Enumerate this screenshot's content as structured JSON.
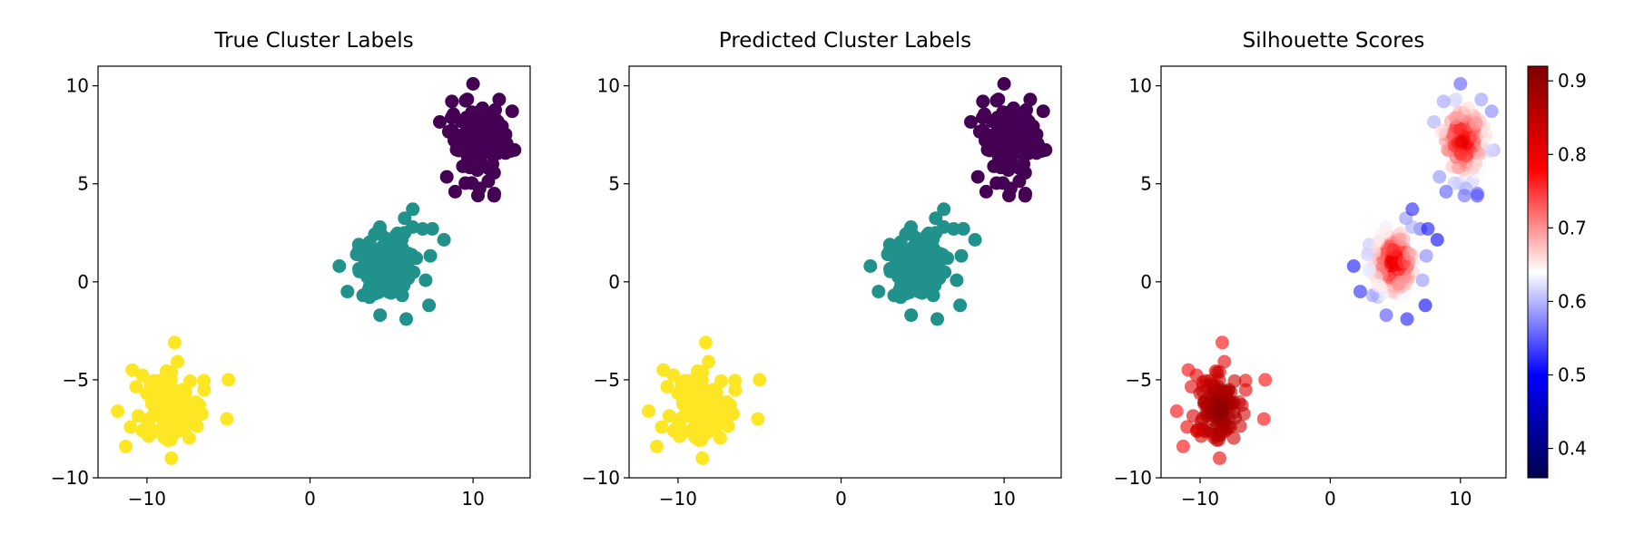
{
  "figure": {
    "background": "#ffffff"
  },
  "chart_data": [
    {
      "type": "scatter",
      "title": "True Cluster Labels",
      "xlabel": "",
      "ylabel": "",
      "xlim": [
        -13.0,
        13.5
      ],
      "ylim": [
        -10.0,
        11.0
      ],
      "xticks": [
        -10,
        0,
        10
      ],
      "xtick_labels": [
        "−10",
        "0",
        "10"
      ],
      "yticks": [
        -10,
        -5,
        0,
        5,
        10
      ],
      "ytick_labels": [
        "−10",
        "−5",
        "0",
        "5",
        "10"
      ],
      "grid": false,
      "series": [
        {
          "cluster": 0,
          "color": "#440154",
          "center": [
            10.2,
            7.2
          ],
          "count": 110,
          "points_sample": [
            [
              8.7,
              9.2
            ],
            [
              11.6,
              9.3
            ],
            [
              12.4,
              8.7
            ],
            [
              10.0,
              10.1
            ],
            [
              8.9,
              4.6
            ],
            [
              10.3,
              4.4
            ],
            [
              11.3,
              4.5
            ]
          ]
        },
        {
          "cluster": 1,
          "color": "#21918c",
          "center": [
            4.9,
            1.0
          ],
          "count": 110,
          "points_sample": [
            [
              1.8,
              0.8
            ],
            [
              6.3,
              3.7
            ],
            [
              7.3,
              -1.2
            ],
            [
              5.9,
              -1.9
            ],
            [
              4.3,
              -1.7
            ],
            [
              2.3,
              -0.5
            ],
            [
              7.5,
              2.7
            ]
          ]
        },
        {
          "cluster": 2,
          "color": "#fde725",
          "center": [
            -8.5,
            -6.5
          ],
          "count": 110,
          "points_sample": [
            [
              -11.3,
              -8.4
            ],
            [
              -11.8,
              -6.6
            ],
            [
              -8.3,
              -3.1
            ],
            [
              -5.0,
              -5.0
            ],
            [
              -5.1,
              -7.0
            ],
            [
              -10.9,
              -4.5
            ],
            [
              -8.5,
              -9.0
            ]
          ]
        }
      ]
    },
    {
      "type": "scatter",
      "title": "Predicted Cluster Labels",
      "xlabel": "",
      "ylabel": "",
      "xlim": [
        -13.0,
        13.5
      ],
      "ylim": [
        -10.0,
        11.0
      ],
      "xticks": [
        -10,
        0,
        10
      ],
      "xtick_labels": [
        "−10",
        "0",
        "10"
      ],
      "yticks": [
        -10,
        -5,
        0,
        5,
        10
      ],
      "ytick_labels": [
        "−10",
        "−5",
        "0",
        "5",
        "10"
      ],
      "grid": false,
      "series": [
        {
          "cluster": 0,
          "color": "#440154",
          "center": [
            10.2,
            7.2
          ],
          "count": 110
        },
        {
          "cluster": 1,
          "color": "#21918c",
          "center": [
            4.9,
            1.0
          ],
          "count": 110
        },
        {
          "cluster": 2,
          "color": "#fde725",
          "center": [
            -8.5,
            -6.5
          ],
          "count": 110
        }
      ]
    },
    {
      "type": "scatter",
      "title": "Silhouette Scores",
      "xlabel": "",
      "ylabel": "",
      "xlim": [
        -13.0,
        13.5
      ],
      "ylim": [
        -10.0,
        11.0
      ],
      "xticks": [
        -10,
        0,
        10
      ],
      "xtick_labels": [
        "−10",
        "0",
        "10"
      ],
      "yticks": [
        -10,
        -5,
        0,
        5,
        10
      ],
      "ytick_labels": [
        "−10",
        "−5",
        "0",
        "5",
        "10"
      ],
      "grid": false,
      "colormap": "seismic",
      "point_alpha": 0.6,
      "colorbar": {
        "range": [
          0.36,
          0.92
        ],
        "ticks": [
          0.4,
          0.5,
          0.6,
          0.7,
          0.8,
          0.9
        ],
        "tick_labels": [
          "0.4",
          "0.5",
          "0.6",
          "0.7",
          "0.8",
          "0.9"
        ],
        "placement": "right"
      },
      "series": [
        {
          "cluster": 0,
          "center": [
            10.2,
            7.2
          ],
          "count": 110,
          "score_center": 0.82,
          "score_edge": 0.52
        },
        {
          "cluster": 1,
          "center": [
            4.9,
            1.0
          ],
          "count": 110,
          "score_center": 0.82,
          "score_edge": 0.5
        },
        {
          "cluster": 2,
          "center": [
            -8.5,
            -6.5
          ],
          "count": 110,
          "score_center": 0.91,
          "score_edge": 0.78
        }
      ]
    }
  ]
}
